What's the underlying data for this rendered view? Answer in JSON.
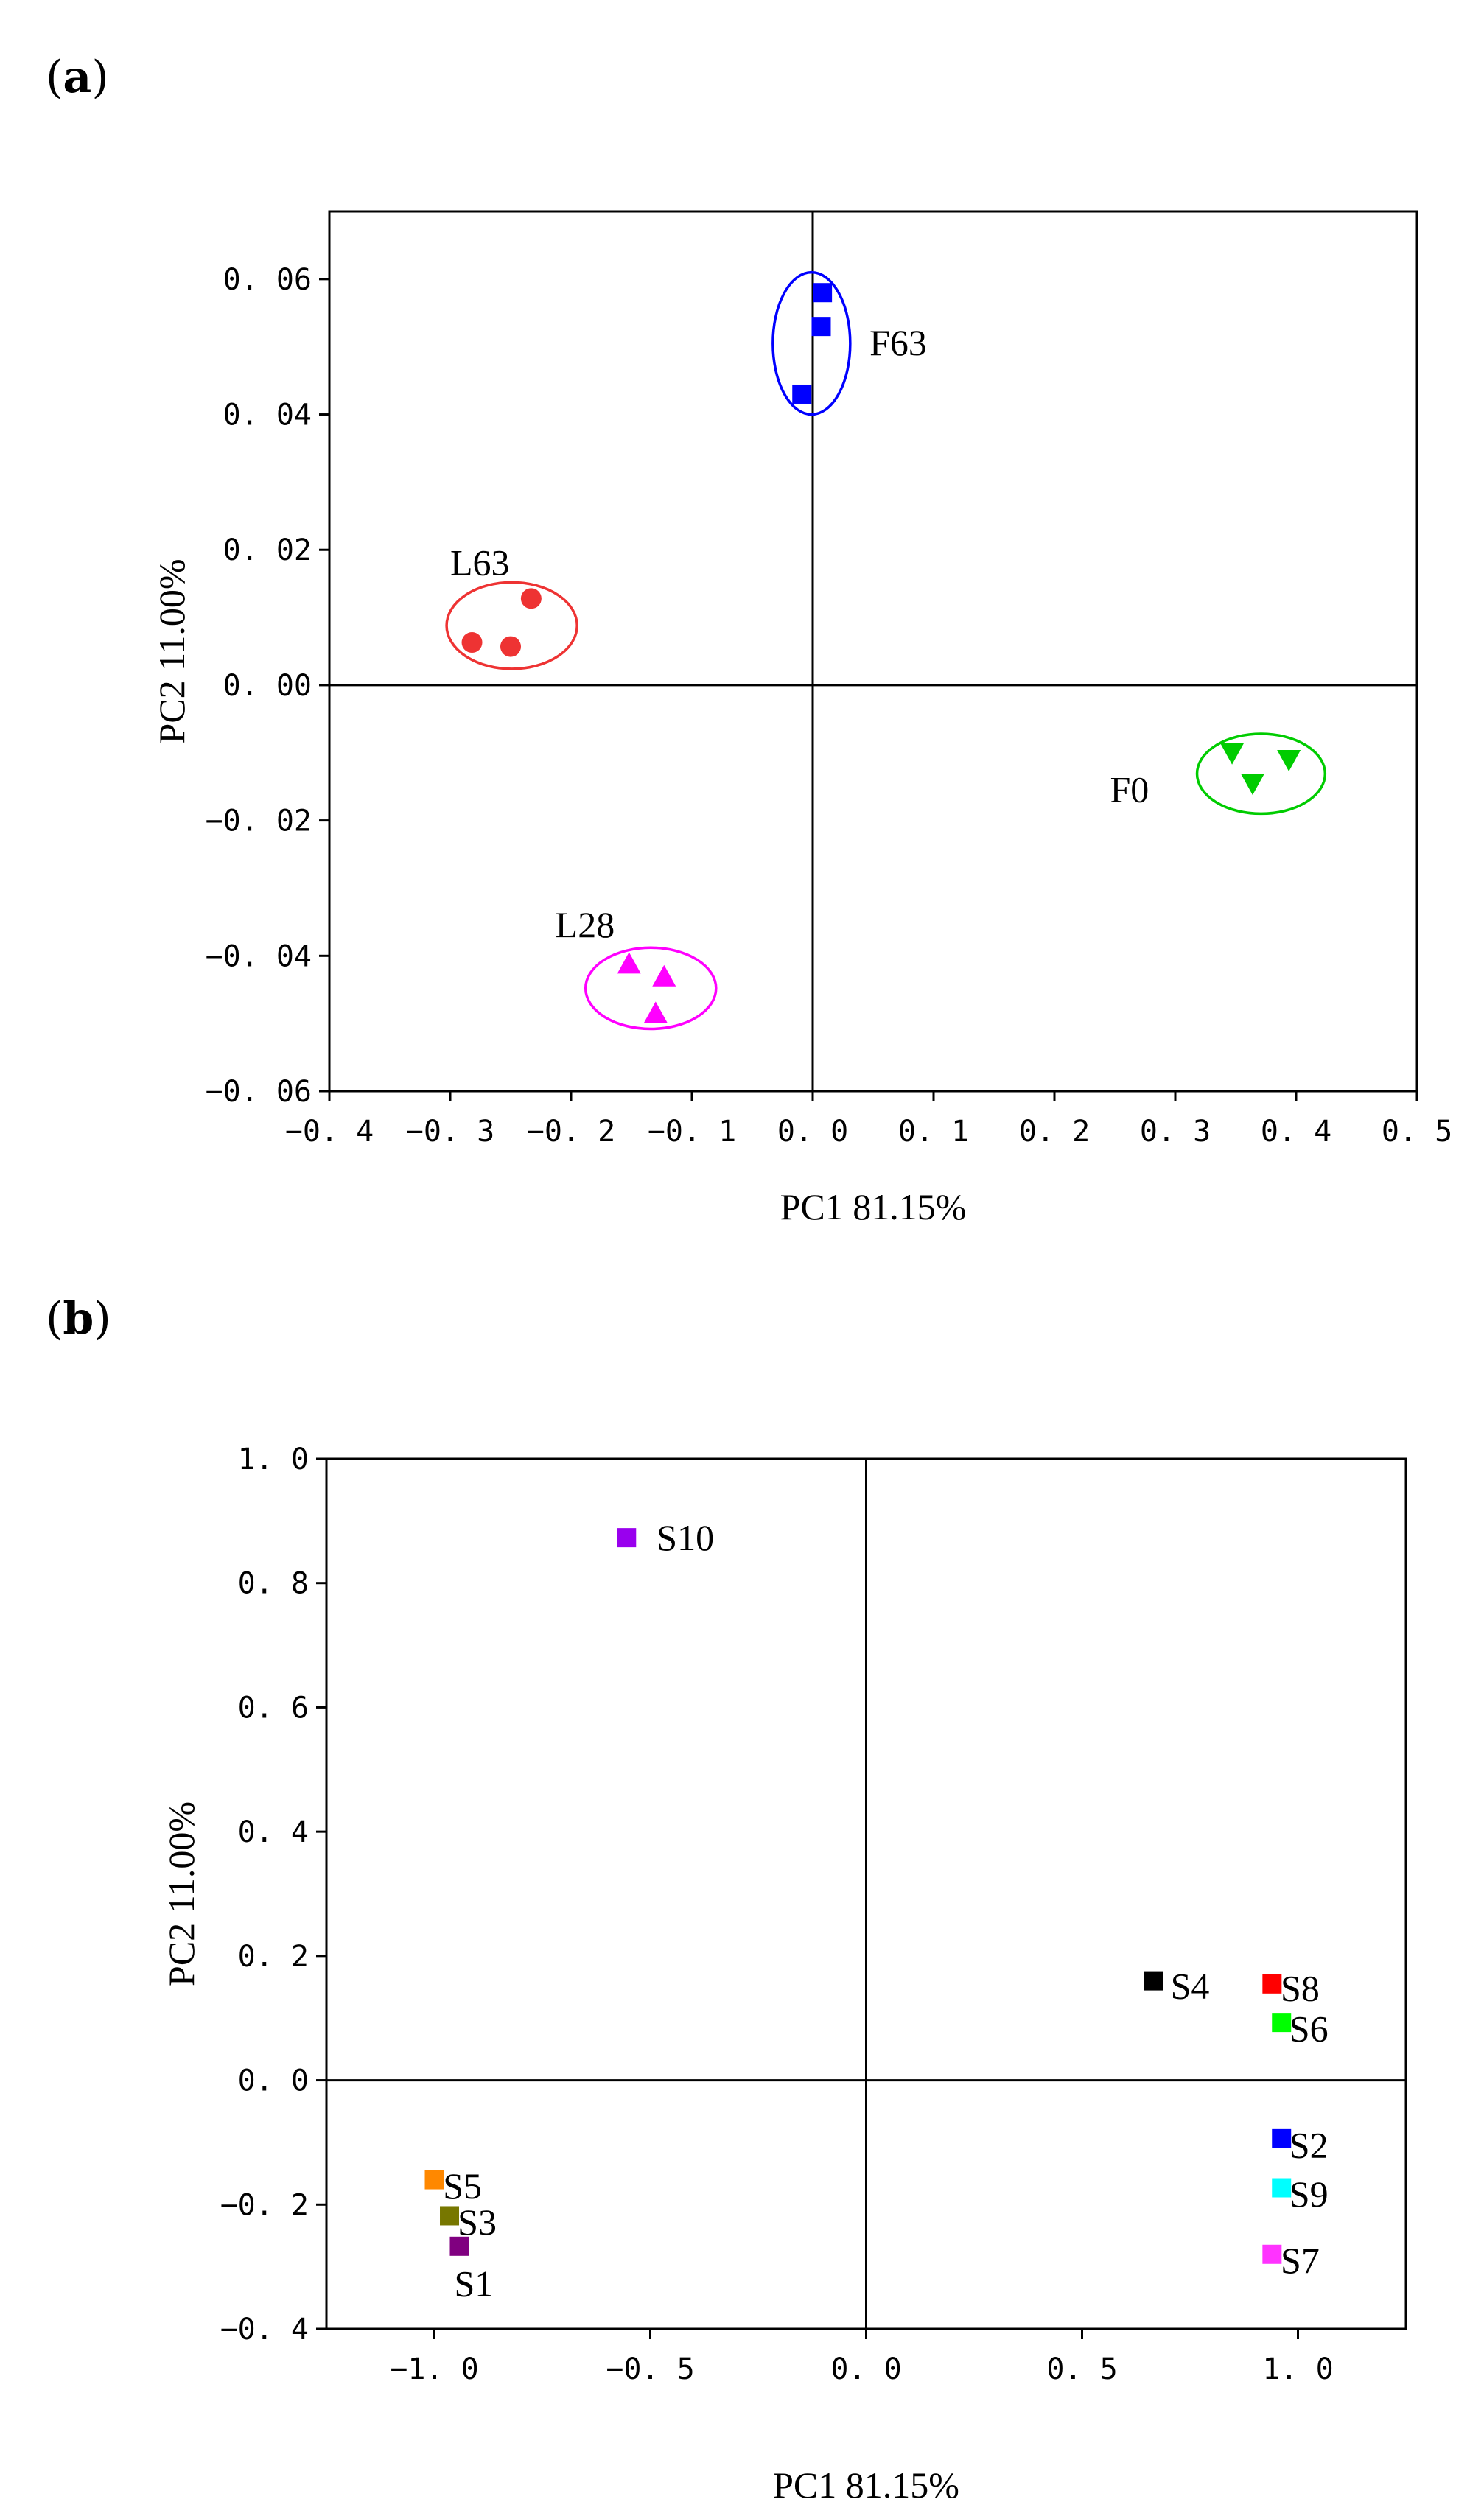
{
  "panels": {
    "a": {
      "label": "(a)",
      "letter": "a"
    },
    "b": {
      "label": "(b)",
      "letter": "b"
    }
  },
  "chart_data": [
    {
      "type": "scatter",
      "panel": "a",
      "title": "",
      "xlabel": "PC1 81.15%",
      "ylabel": "PC2 11.00%",
      "xlim": [
        -0.4,
        0.5
      ],
      "ylim": [
        -0.06,
        0.07
      ],
      "xticks": [
        "−0. 4",
        "−0. 3",
        "−0. 2",
        "−0. 1",
        "0. 0",
        "0. 1",
        "0. 2",
        "0. 3",
        "0. 4",
        "0. 5"
      ],
      "xtick_values": [
        -0.4,
        -0.3,
        -0.2,
        -0.1,
        0.0,
        0.1,
        0.2,
        0.3,
        0.4,
        0.5
      ],
      "yticks": [
        "−0. 06",
        "−0. 04",
        "−0. 02",
        "0. 00",
        "0. 02",
        "0. 04",
        "0. 06"
      ],
      "ytick_values": [
        -0.06,
        -0.04,
        -0.02,
        0.0,
        0.02,
        0.04,
        0.06
      ],
      "grid": false,
      "groups": [
        {
          "name": "F63",
          "color": "#0000ff",
          "marker": "square",
          "points": [
            [
              0.008,
              0.058
            ],
            [
              0.007,
              0.053
            ],
            [
              -0.009,
              0.043
            ]
          ],
          "ellipse": {
            "cx": -0.001,
            "cy": 0.0505,
            "rx": 0.032,
            "ry": 0.0105
          },
          "label": "F63",
          "label_at": [
            0.047,
            0.0505
          ]
        },
        {
          "name": "L63",
          "color": "#ee3333",
          "marker": "circle",
          "points": [
            [
              -0.233,
              0.0128
            ],
            [
              -0.282,
              0.0063
            ],
            [
              -0.25,
              0.0057
            ]
          ],
          "ellipse": {
            "cx": -0.249,
            "cy": 0.0088,
            "rx": 0.054,
            "ry": 0.0064
          },
          "label": "L63",
          "label_at": [
            -0.3,
            0.018
          ]
        },
        {
          "name": "F0",
          "color": "#00cc00",
          "marker": "triangle-down",
          "points": [
            [
              0.347,
              -0.01
            ],
            [
              0.394,
              -0.011
            ],
            [
              0.364,
              -0.0145
            ]
          ],
          "ellipse": {
            "cx": 0.371,
            "cy": -0.0131,
            "rx": 0.053,
            "ry": 0.0059
          },
          "label": "F0",
          "label_at": [
            0.246,
            -0.0155
          ]
        },
        {
          "name": "L28",
          "color": "#ff00ff",
          "marker": "triangle-up",
          "points": [
            [
              -0.152,
              -0.0412
            ],
            [
              -0.123,
              -0.0431
            ],
            [
              -0.13,
              -0.0485
            ]
          ],
          "ellipse": {
            "cx": -0.134,
            "cy": -0.0448,
            "rx": 0.054,
            "ry": 0.006
          },
          "label": "L28",
          "label_at": [
            -0.213,
            -0.0355
          ]
        }
      ]
    },
    {
      "type": "scatter",
      "panel": "b",
      "title": "",
      "xlabel": "PC1 81.15%",
      "ylabel": "PC2 11.00%",
      "xlim": [
        -1.25,
        1.25
      ],
      "ylim": [
        -0.4,
        1.0
      ],
      "xticks": [
        "−1. 0",
        "−0. 5",
        "0. 0",
        "0. 5",
        "1. 0"
      ],
      "xtick_values": [
        -1.0,
        -0.5,
        0.0,
        0.5,
        1.0
      ],
      "yticks": [
        "−0. 4",
        "−0. 2",
        "0. 0",
        "0. 2",
        "0. 4",
        "0. 6",
        "0. 8",
        "1. 0"
      ],
      "ytick_values": [
        -0.4,
        -0.2,
        0.0,
        0.2,
        0.4,
        0.6,
        0.8,
        1.0
      ],
      "grid": false,
      "points": [
        {
          "name": "S10",
          "x": -0.555,
          "y": 0.873,
          "color": "#9900ee",
          "label_at": [
            -0.485,
            0.873
          ]
        },
        {
          "name": "S4",
          "x": 0.665,
          "y": 0.16,
          "color": "#000000",
          "label_at": [
            0.705,
            0.152
          ]
        },
        {
          "name": "S8",
          "x": 0.94,
          "y": 0.155,
          "color": "#ff0000",
          "label_at": [
            0.96,
            0.148
          ]
        },
        {
          "name": "S6",
          "x": 0.962,
          "y": 0.093,
          "color": "#00ff00",
          "label_at": [
            0.98,
            0.083
          ]
        },
        {
          "name": "S2",
          "x": 0.962,
          "y": -0.094,
          "color": "#0000ff",
          "label_at": [
            0.98,
            -0.104
          ]
        },
        {
          "name": "S9",
          "x": 0.962,
          "y": -0.173,
          "color": "#00ffff",
          "label_at": [
            0.98,
            -0.183
          ]
        },
        {
          "name": "S7",
          "x": 0.94,
          "y": -0.28,
          "color": "#ff33ff",
          "label_at": [
            0.96,
            -0.29
          ]
        },
        {
          "name": "S5",
          "x": -1.0,
          "y": -0.16,
          "color": "#ff8800",
          "label_at": [
            -0.98,
            -0.17
          ]
        },
        {
          "name": "S3",
          "x": -0.965,
          "y": -0.218,
          "color": "#777700",
          "label_at": [
            -0.946,
            -0.228
          ]
        },
        {
          "name": "S1",
          "x": -0.942,
          "y": -0.267,
          "color": "#800080",
          "label_at": [
            -0.954,
            -0.327
          ]
        }
      ]
    }
  ]
}
